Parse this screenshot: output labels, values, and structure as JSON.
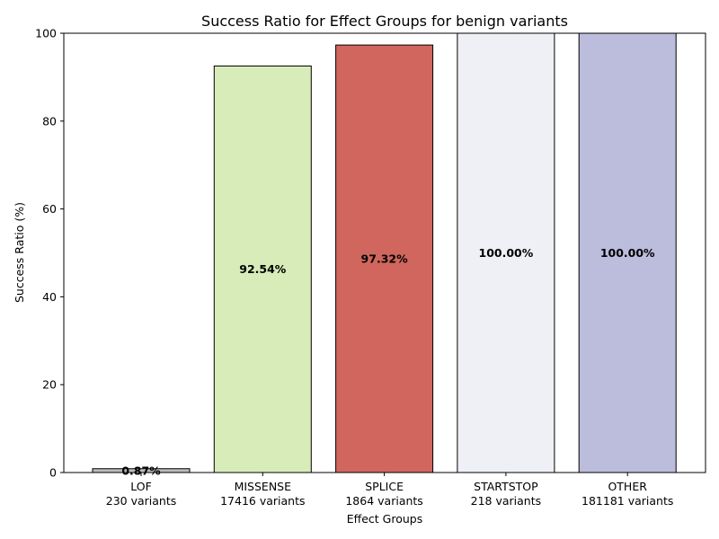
{
  "chart_data": {
    "type": "bar",
    "title": "Success Ratio for Effect Groups for benign variants",
    "xlabel": "Effect Groups",
    "ylabel": "Success Ratio (%)",
    "ylim": [
      0,
      100
    ],
    "yticks": [
      0,
      20,
      40,
      60,
      80,
      100
    ],
    "grid": false,
    "legend": "none",
    "categories": [
      "LOF",
      "MISSENSE",
      "SPLICE",
      "STARTSTOP",
      "OTHER"
    ],
    "category_counts": [
      "230 variants",
      "17416 variants",
      "1864 variants",
      "218 variants",
      "181181 variants"
    ],
    "values": [
      0.87,
      92.54,
      97.32,
      100.0,
      100.0
    ],
    "value_labels": [
      "0.87%",
      "92.54%",
      "97.32%",
      "100.00%",
      "100.00%"
    ],
    "colors": [
      "#bdbaba",
      "#d7ecb8",
      "#d0665d",
      "#efeff6",
      "#bcbcdc"
    ]
  }
}
